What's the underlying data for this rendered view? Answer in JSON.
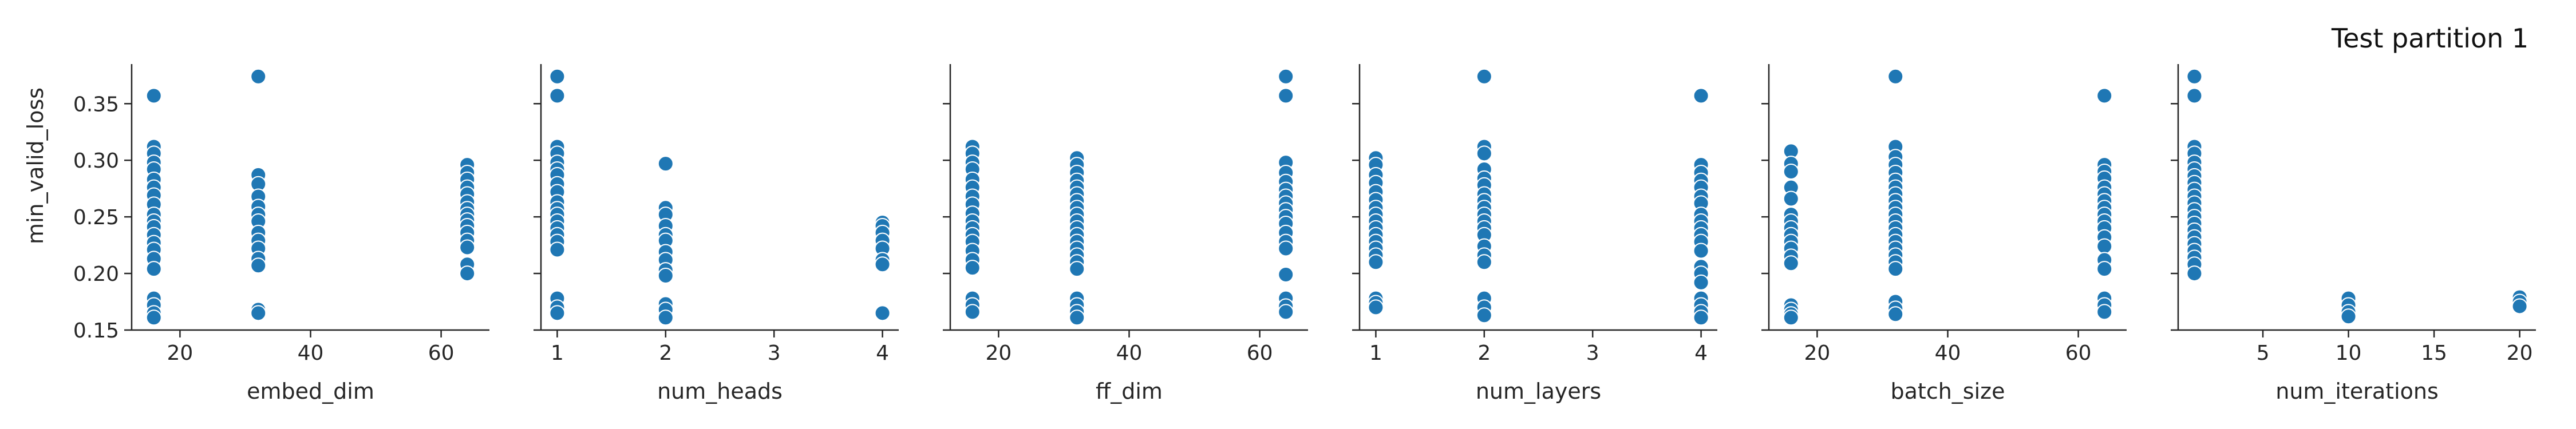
{
  "figure": {
    "title": "Test partition 1"
  },
  "chart_data": {
    "type": "scatter",
    "title": "Test partition 1",
    "ylabel": "min_valid_loss",
    "ylim": [
      0.15,
      0.385
    ],
    "yticks": [
      0.15,
      0.2,
      0.25,
      0.3,
      0.35
    ],
    "marker_color": "#1f77b4",
    "grid": false,
    "panels": [
      {
        "xlabel": "embed_dim",
        "xlim": [
          12.6,
          67.4
        ],
        "xticks": [
          20,
          40,
          60
        ],
        "points": [
          [
            16,
            0.357
          ],
          [
            16,
            0.312
          ],
          [
            16,
            0.306
          ],
          [
            16,
            0.298
          ],
          [
            16,
            0.292
          ],
          [
            16,
            0.283
          ],
          [
            16,
            0.276
          ],
          [
            16,
            0.269
          ],
          [
            16,
            0.261
          ],
          [
            16,
            0.252
          ],
          [
            16,
            0.246
          ],
          [
            16,
            0.241
          ],
          [
            16,
            0.234
          ],
          [
            16,
            0.227
          ],
          [
            16,
            0.221
          ],
          [
            16,
            0.213
          ],
          [
            16,
            0.204
          ],
          [
            16,
            0.178
          ],
          [
            16,
            0.172
          ],
          [
            16,
            0.165
          ],
          [
            16,
            0.161
          ],
          [
            32,
            0.374
          ],
          [
            32,
            0.287
          ],
          [
            32,
            0.279
          ],
          [
            32,
            0.268
          ],
          [
            32,
            0.259
          ],
          [
            32,
            0.252
          ],
          [
            32,
            0.246
          ],
          [
            32,
            0.236
          ],
          [
            32,
            0.229
          ],
          [
            32,
            0.222
          ],
          [
            32,
            0.213
          ],
          [
            32,
            0.207
          ],
          [
            32,
            0.168
          ],
          [
            32,
            0.165
          ],
          [
            64,
            0.296
          ],
          [
            64,
            0.289
          ],
          [
            64,
            0.283
          ],
          [
            64,
            0.276
          ],
          [
            64,
            0.27
          ],
          [
            64,
            0.263
          ],
          [
            64,
            0.257
          ],
          [
            64,
            0.252
          ],
          [
            64,
            0.247
          ],
          [
            64,
            0.242
          ],
          [
            64,
            0.236
          ],
          [
            64,
            0.229
          ],
          [
            64,
            0.223
          ],
          [
            64,
            0.208
          ],
          [
            64,
            0.2
          ]
        ]
      },
      {
        "xlabel": "num_heads",
        "xlim": [
          0.85,
          4.15
        ],
        "xticks": [
          1,
          2,
          3,
          4
        ],
        "points": [
          [
            1,
            0.374
          ],
          [
            1,
            0.357
          ],
          [
            1,
            0.312
          ],
          [
            1,
            0.306
          ],
          [
            1,
            0.298
          ],
          [
            1,
            0.292
          ],
          [
            1,
            0.287
          ],
          [
            1,
            0.279
          ],
          [
            1,
            0.272
          ],
          [
            1,
            0.263
          ],
          [
            1,
            0.257
          ],
          [
            1,
            0.252
          ],
          [
            1,
            0.246
          ],
          [
            1,
            0.24
          ],
          [
            1,
            0.234
          ],
          [
            1,
            0.228
          ],
          [
            1,
            0.221
          ],
          [
            1,
            0.178
          ],
          [
            1,
            0.17
          ],
          [
            1,
            0.165
          ],
          [
            2,
            0.297
          ],
          [
            2,
            0.258
          ],
          [
            2,
            0.252
          ],
          [
            2,
            0.242
          ],
          [
            2,
            0.234
          ],
          [
            2,
            0.229
          ],
          [
            2,
            0.219
          ],
          [
            2,
            0.212
          ],
          [
            2,
            0.203
          ],
          [
            2,
            0.198
          ],
          [
            2,
            0.173
          ],
          [
            2,
            0.168
          ],
          [
            2,
            0.161
          ],
          [
            4,
            0.245
          ],
          [
            4,
            0.242
          ],
          [
            4,
            0.236
          ],
          [
            4,
            0.229
          ],
          [
            4,
            0.222
          ],
          [
            4,
            0.212
          ],
          [
            4,
            0.208
          ],
          [
            4,
            0.165
          ]
        ]
      },
      {
        "xlabel": "ff_dim",
        "xlim": [
          12.6,
          67.4
        ],
        "xticks": [
          20,
          40,
          60
        ],
        "points": [
          [
            16,
            0.312
          ],
          [
            16,
            0.306
          ],
          [
            16,
            0.298
          ],
          [
            16,
            0.292
          ],
          [
            16,
            0.283
          ],
          [
            16,
            0.276
          ],
          [
            16,
            0.268
          ],
          [
            16,
            0.261
          ],
          [
            16,
            0.253
          ],
          [
            16,
            0.246
          ],
          [
            16,
            0.24
          ],
          [
            16,
            0.234
          ],
          [
            16,
            0.228
          ],
          [
            16,
            0.22
          ],
          [
            16,
            0.212
          ],
          [
            16,
            0.205
          ],
          [
            16,
            0.178
          ],
          [
            16,
            0.172
          ],
          [
            16,
            0.166
          ],
          [
            32,
            0.302
          ],
          [
            32,
            0.296
          ],
          [
            32,
            0.289
          ],
          [
            32,
            0.282
          ],
          [
            32,
            0.276
          ],
          [
            32,
            0.27
          ],
          [
            32,
            0.264
          ],
          [
            32,
            0.258
          ],
          [
            32,
            0.252
          ],
          [
            32,
            0.246
          ],
          [
            32,
            0.24
          ],
          [
            32,
            0.234
          ],
          [
            32,
            0.228
          ],
          [
            32,
            0.222
          ],
          [
            32,
            0.216
          ],
          [
            32,
            0.21
          ],
          [
            32,
            0.204
          ],
          [
            32,
            0.178
          ],
          [
            32,
            0.172
          ],
          [
            32,
            0.166
          ],
          [
            32,
            0.161
          ],
          [
            64,
            0.374
          ],
          [
            64,
            0.357
          ],
          [
            64,
            0.298
          ],
          [
            64,
            0.289
          ],
          [
            64,
            0.281
          ],
          [
            64,
            0.274
          ],
          [
            64,
            0.268
          ],
          [
            64,
            0.262
          ],
          [
            64,
            0.256
          ],
          [
            64,
            0.25
          ],
          [
            64,
            0.244
          ],
          [
            64,
            0.236
          ],
          [
            64,
            0.228
          ],
          [
            64,
            0.222
          ],
          [
            64,
            0.199
          ],
          [
            64,
            0.178
          ],
          [
            64,
            0.171
          ],
          [
            64,
            0.166
          ]
        ]
      },
      {
        "xlabel": "num_layers",
        "xlim": [
          0.85,
          4.15
        ],
        "xticks": [
          1,
          2,
          3,
          4
        ],
        "points": [
          [
            1,
            0.302
          ],
          [
            1,
            0.296
          ],
          [
            1,
            0.287
          ],
          [
            1,
            0.28
          ],
          [
            1,
            0.272
          ],
          [
            1,
            0.265
          ],
          [
            1,
            0.258
          ],
          [
            1,
            0.252
          ],
          [
            1,
            0.246
          ],
          [
            1,
            0.24
          ],
          [
            1,
            0.234
          ],
          [
            1,
            0.228
          ],
          [
            1,
            0.222
          ],
          [
            1,
            0.216
          ],
          [
            1,
            0.21
          ],
          [
            1,
            0.178
          ],
          [
            1,
            0.174
          ],
          [
            1,
            0.17
          ],
          [
            2,
            0.374
          ],
          [
            2,
            0.312
          ],
          [
            2,
            0.306
          ],
          [
            2,
            0.292
          ],
          [
            2,
            0.284
          ],
          [
            2,
            0.278
          ],
          [
            2,
            0.27
          ],
          [
            2,
            0.264
          ],
          [
            2,
            0.258
          ],
          [
            2,
            0.252
          ],
          [
            2,
            0.246
          ],
          [
            2,
            0.24
          ],
          [
            2,
            0.234
          ],
          [
            2,
            0.224
          ],
          [
            2,
            0.216
          ],
          [
            2,
            0.21
          ],
          [
            2,
            0.178
          ],
          [
            2,
            0.17
          ],
          [
            2,
            0.163
          ],
          [
            4,
            0.357
          ],
          [
            4,
            0.296
          ],
          [
            4,
            0.289
          ],
          [
            4,
            0.282
          ],
          [
            4,
            0.276
          ],
          [
            4,
            0.268
          ],
          [
            4,
            0.262
          ],
          [
            4,
            0.252
          ],
          [
            4,
            0.246
          ],
          [
            4,
            0.24
          ],
          [
            4,
            0.234
          ],
          [
            4,
            0.228
          ],
          [
            4,
            0.22
          ],
          [
            4,
            0.206
          ],
          [
            4,
            0.2
          ],
          [
            4,
            0.192
          ],
          [
            4,
            0.178
          ],
          [
            4,
            0.172
          ],
          [
            4,
            0.166
          ],
          [
            4,
            0.161
          ]
        ]
      },
      {
        "xlabel": "batch_size",
        "xlim": [
          12.6,
          67.4
        ],
        "xticks": [
          20,
          40,
          60
        ],
        "points": [
          [
            16,
            0.308
          ],
          [
            16,
            0.297
          ],
          [
            16,
            0.29
          ],
          [
            16,
            0.276
          ],
          [
            16,
            0.266
          ],
          [
            16,
            0.252
          ],
          [
            16,
            0.246
          ],
          [
            16,
            0.24
          ],
          [
            16,
            0.234
          ],
          [
            16,
            0.228
          ],
          [
            16,
            0.222
          ],
          [
            16,
            0.215
          ],
          [
            16,
            0.209
          ],
          [
            16,
            0.172
          ],
          [
            16,
            0.168
          ],
          [
            16,
            0.164
          ],
          [
            16,
            0.161
          ],
          [
            32,
            0.374
          ],
          [
            32,
            0.312
          ],
          [
            32,
            0.303
          ],
          [
            32,
            0.296
          ],
          [
            32,
            0.289
          ],
          [
            32,
            0.282
          ],
          [
            32,
            0.276
          ],
          [
            32,
            0.27
          ],
          [
            32,
            0.264
          ],
          [
            32,
            0.258
          ],
          [
            32,
            0.252
          ],
          [
            32,
            0.246
          ],
          [
            32,
            0.24
          ],
          [
            32,
            0.234
          ],
          [
            32,
            0.228
          ],
          [
            32,
            0.222
          ],
          [
            32,
            0.216
          ],
          [
            32,
            0.21
          ],
          [
            32,
            0.204
          ],
          [
            32,
            0.175
          ],
          [
            32,
            0.169
          ],
          [
            32,
            0.164
          ],
          [
            64,
            0.357
          ],
          [
            64,
            0.296
          ],
          [
            64,
            0.29
          ],
          [
            64,
            0.284
          ],
          [
            64,
            0.276
          ],
          [
            64,
            0.27
          ],
          [
            64,
            0.264
          ],
          [
            64,
            0.258
          ],
          [
            64,
            0.252
          ],
          [
            64,
            0.246
          ],
          [
            64,
            0.24
          ],
          [
            64,
            0.232
          ],
          [
            64,
            0.224
          ],
          [
            64,
            0.212
          ],
          [
            64,
            0.204
          ],
          [
            64,
            0.178
          ],
          [
            64,
            0.172
          ],
          [
            64,
            0.166
          ]
        ]
      },
      {
        "xlabel": "num_iterations",
        "xlim": [
          0.05,
          20.95
        ],
        "xticks": [
          5,
          10,
          15,
          20
        ],
        "points": [
          [
            1,
            0.374
          ],
          [
            1,
            0.357
          ],
          [
            1,
            0.312
          ],
          [
            1,
            0.306
          ],
          [
            1,
            0.298
          ],
          [
            1,
            0.292
          ],
          [
            1,
            0.286
          ],
          [
            1,
            0.28
          ],
          [
            1,
            0.274
          ],
          [
            1,
            0.268
          ],
          [
            1,
            0.262
          ],
          [
            1,
            0.256
          ],
          [
            1,
            0.25
          ],
          [
            1,
            0.244
          ],
          [
            1,
            0.238
          ],
          [
            1,
            0.232
          ],
          [
            1,
            0.226
          ],
          [
            1,
            0.22
          ],
          [
            1,
            0.214
          ],
          [
            1,
            0.208
          ],
          [
            1,
            0.2
          ],
          [
            10,
            0.178
          ],
          [
            10,
            0.172
          ],
          [
            10,
            0.166
          ],
          [
            10,
            0.162
          ],
          [
            20,
            0.179
          ],
          [
            20,
            0.175
          ],
          [
            20,
            0.171
          ]
        ]
      }
    ]
  }
}
